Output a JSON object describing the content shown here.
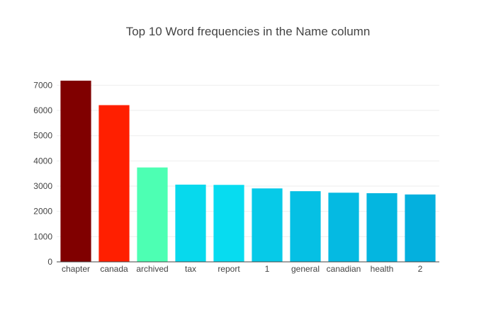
{
  "chart_data": {
    "type": "bar",
    "title": "Top 10 Word frequencies in the Name column",
    "xlabel": "",
    "ylabel": "",
    "categories": [
      "chapter",
      "canada",
      "archived",
      "tax",
      "report",
      "1",
      "general",
      "canadian",
      "health",
      "2"
    ],
    "values": [
      7180,
      6210,
      3740,
      3060,
      3050,
      2910,
      2800,
      2740,
      2720,
      2670
    ],
    "colors": [
      "#800000",
      "#ff1f00",
      "#4dffb3",
      "#07d9ed",
      "#07dcf0",
      "#06cae8",
      "#05c0e4",
      "#05bae2",
      "#04b6e0",
      "#04b0de"
    ],
    "ylim": [
      0,
      7200
    ],
    "yticks": [
      0,
      1000,
      2000,
      3000,
      4000,
      5000,
      6000,
      7000
    ],
    "grid": true,
    "legend": "none"
  }
}
